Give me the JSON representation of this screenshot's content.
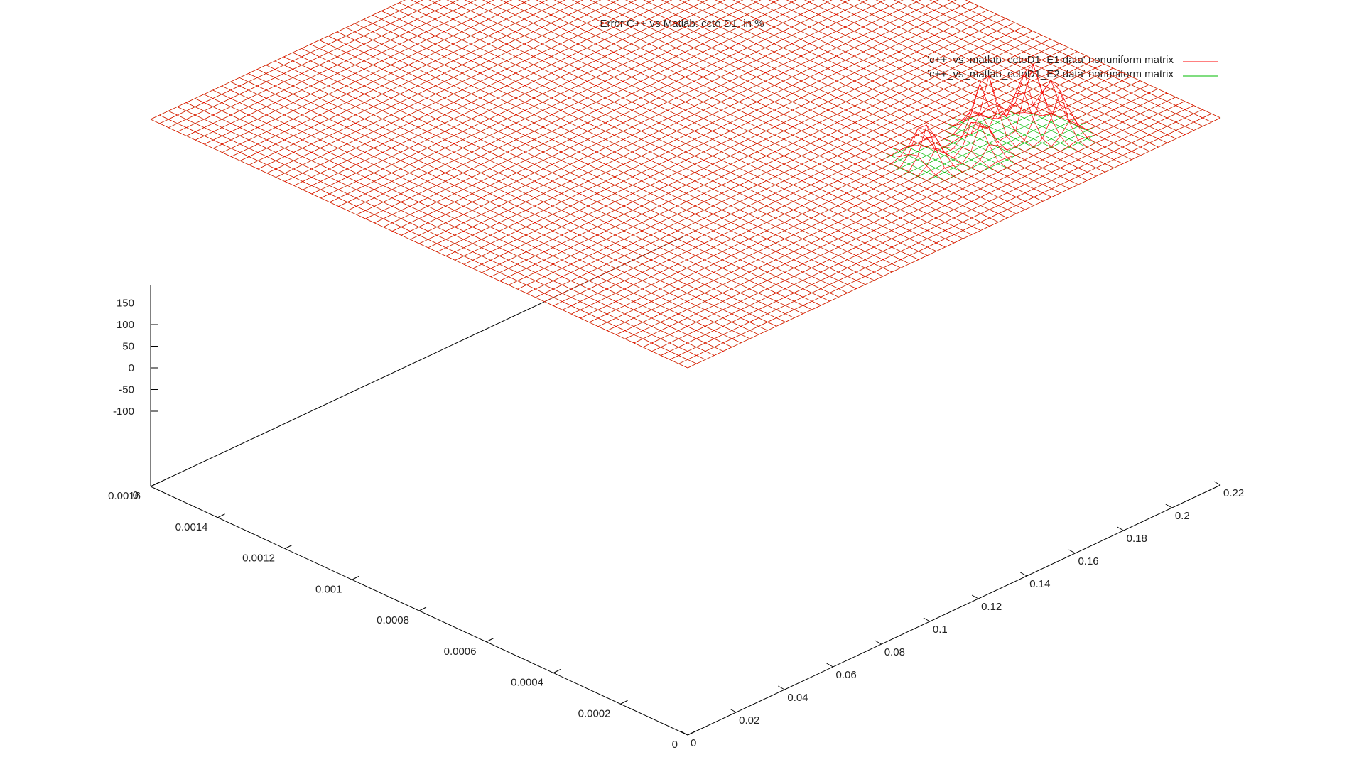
{
  "chart_data": {
    "type": "surface",
    "title": "Error C++ vs Matlab: ccto D1, in %",
    "legend_position": "top-right",
    "series": [
      {
        "name": "'c++_vs_matlab_cctoD1_E1.data' nonuniform matrix",
        "color": "#ff0000",
        "description_values": {
          "baseline_z": 0,
          "peaks": [
            {
              "x": 0.0003,
              "y": 0.14,
              "z": 95
            },
            {
              "x": 0.00025,
              "y": 0.155,
              "z": 85
            },
            {
              "x": 0.0003,
              "y": 0.165,
              "z": 140
            },
            {
              "x": 0.00025,
              "y": 0.175,
              "z": 155
            },
            {
              "x": 0.0002,
              "y": 0.18,
              "z": 110
            }
          ]
        }
      },
      {
        "name": "'c++_vs_matlab_cctoD1_E2.data' nonuniform matrix",
        "color": "#00bb00",
        "description_values": {
          "baseline_z": 0
        }
      }
    ],
    "x_axis": {
      "range": [
        0,
        0.0016
      ],
      "ticks": [
        "0",
        "0.0002",
        "0.0004",
        "0.0006",
        "0.0008",
        "0.001",
        "0.0012",
        "0.0014",
        "0.0016"
      ]
    },
    "y_axis": {
      "range": [
        0,
        0.22
      ],
      "ticks": [
        "0",
        "0.02",
        "0.04",
        "0.06",
        "0.08",
        "0.1",
        "0.12",
        "0.14",
        "0.16",
        "0.18",
        "0.2",
        "0.22"
      ]
    },
    "z_axis": {
      "ticks": [
        "150",
        "100",
        "50",
        "0",
        "-50",
        "-100"
      ],
      "bottom_label": "0"
    },
    "grid": false
  }
}
